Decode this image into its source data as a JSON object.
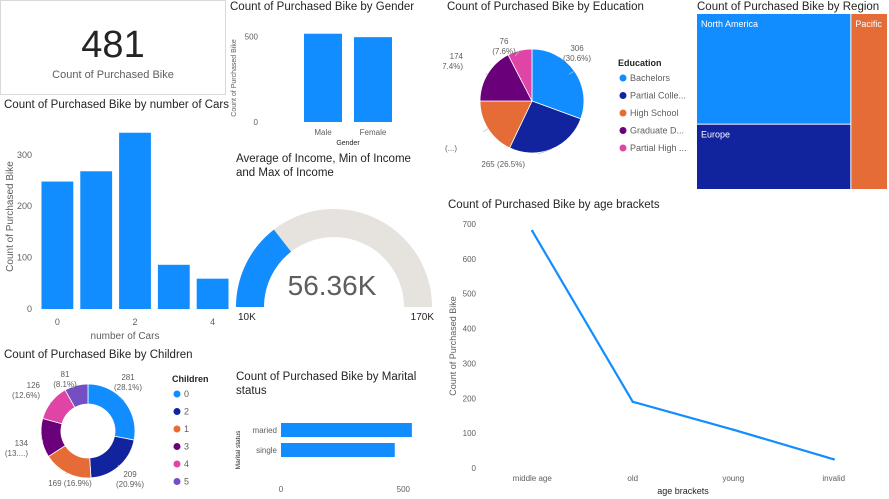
{
  "palette": {
    "blue": "#118dff",
    "navy": "#12239e",
    "orange": "#e66c37",
    "purple": "#6b007b",
    "pink": "#e044a7",
    "darkpurple": "#744ec2",
    "gauge_bg": "#e6e2dd",
    "axis_text": "#605e5c",
    "grid": "#e8e8e8"
  },
  "card": {
    "value": "481",
    "label": "Count of Purchased Bike"
  },
  "cars_chart": {
    "type": "bar",
    "title": "Count of Purchased Bike by number of Cars",
    "xlabel": "number of Cars",
    "ylabel": "Count of Purchased Bike",
    "categories": [
      "0",
      "1",
      "2",
      "3",
      "4"
    ],
    "x_tick_labels": [
      "0",
      "2",
      "4"
    ],
    "values": [
      248,
      268,
      343,
      86,
      59
    ],
    "yticks": [
      0,
      100,
      200,
      300
    ],
    "ylim": [
      0,
      360
    ]
  },
  "gender_chart": {
    "type": "bar",
    "title": "Count of Purchased Bike by Gender",
    "xlabel": "Gender",
    "ylabel": "Count of Purchased Bike",
    "categories": [
      "Male",
      "Female"
    ],
    "values": [
      515,
      495
    ],
    "yticks": [
      0,
      500
    ],
    "ylim": [
      0,
      560
    ]
  },
  "education_chart": {
    "type": "pie",
    "title": "Count of Purchased Bike by Education",
    "legend_title": "Education",
    "legend_position": "right",
    "slices": [
      {
        "name": "Bachelors",
        "legend_label": "Bachelors",
        "value": 306,
        "label_top": "306",
        "label_bottom": "(30.6%)",
        "color": "#118dff"
      },
      {
        "name": "Partial College",
        "legend_label": "Partial Colle...",
        "value": 265,
        "label_top": "265 (26.5%)",
        "label_bottom": "",
        "color": "#12239e"
      },
      {
        "name": "High School",
        "legend_label": "High School",
        "value": 179,
        "label_top": "179 (...)",
        "label_bottom": "",
        "color": "#e66c37"
      },
      {
        "name": "Graduate Degree",
        "legend_label": "Graduate D...",
        "value": 174,
        "label_top": "174",
        "label_bottom": "(17.4%)",
        "color": "#6b007b"
      },
      {
        "name": "Partial High School",
        "legend_label": "Partial High ...",
        "value": 76,
        "label_top": "76",
        "label_bottom": "(7.6%)",
        "color": "#e044a7"
      }
    ]
  },
  "region_chart": {
    "type": "treemap",
    "title": "Count of Purchased Bike by Region",
    "regions": [
      {
        "name": "North America",
        "value": 508,
        "color": "#118dff"
      },
      {
        "name": "Europe",
        "value": 300,
        "color": "#12239e"
      },
      {
        "name": "Pacific",
        "value": 192,
        "color": "#e66c37"
      }
    ]
  },
  "income_gauge": {
    "type": "gauge",
    "title_line1": "Average of Income, Min of Income",
    "title_line2": "and Max of Income",
    "value": 56.36,
    "value_label": "56.36K",
    "min": 10,
    "max": 170,
    "min_label": "10K",
    "max_label": "170K"
  },
  "age_chart": {
    "type": "line",
    "title": "Count of Purchased Bike by age brackets",
    "xlabel": "age brackets",
    "ylabel": "Count of Purchased Bike",
    "categories": [
      "middle age",
      "old",
      "young",
      "invalid"
    ],
    "values": [
      680,
      190,
      110,
      25
    ],
    "yticks": [
      0,
      100,
      200,
      300,
      400,
      500,
      600,
      700
    ],
    "ylim": [
      0,
      700
    ]
  },
  "children_chart": {
    "type": "pie",
    "variant": "donut",
    "title": "Count of Purchased Bike by Children",
    "legend_title": "Children",
    "legend_position": "right",
    "slices": [
      {
        "name": "0",
        "value": 281,
        "label_top": "281",
        "label_bottom": "(28.1%)",
        "color": "#118dff"
      },
      {
        "name": "2",
        "value": 209,
        "label_top": "209",
        "label_bottom": "(20.9%)",
        "color": "#12239e"
      },
      {
        "name": "1",
        "value": 169,
        "label_top": "169 (16.9%)",
        "label_bottom": "",
        "color": "#e66c37"
      },
      {
        "name": "3",
        "value": 134,
        "label_top": "134",
        "label_bottom": "(13....)",
        "color": "#6b007b"
      },
      {
        "name": "4",
        "value": 126,
        "label_top": "126",
        "label_bottom": "(12.6%)",
        "color": "#e044a7"
      },
      {
        "name": "5",
        "value": 81,
        "label_top": "81",
        "label_bottom": "(8.1%)",
        "color": "#744ec2"
      }
    ]
  },
  "marital_chart": {
    "type": "bar",
    "orientation": "horizontal",
    "title_line1": "Count of Purchased Bike by Marital",
    "title_line2": "status",
    "ylabel": "Marital status",
    "categories": [
      "maried",
      "single"
    ],
    "values": [
      535,
      465
    ],
    "xticks": [
      0,
      500
    ],
    "xlim": [
      0,
      560
    ]
  }
}
